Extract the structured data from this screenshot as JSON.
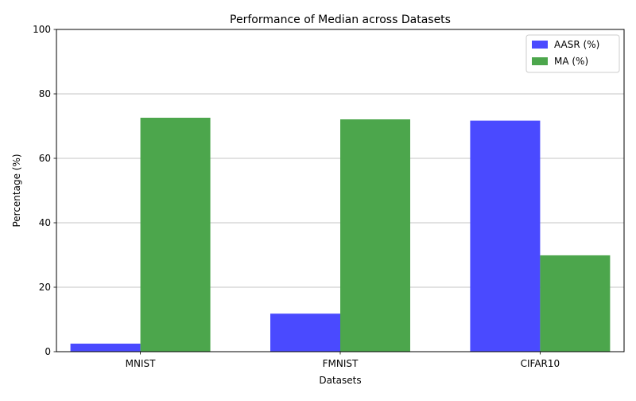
{
  "chart_data": {
    "type": "bar",
    "title": "Performance of Median across Datasets",
    "xlabel": "Datasets",
    "ylabel": "Percentage (%)",
    "categories": [
      "MNIST",
      "FMNIST",
      "CIFAR10"
    ],
    "series": [
      {
        "name": "AASR (%)",
        "values": [
          2.5,
          11.8,
          71.7
        ],
        "color": "#4a4aff"
      },
      {
        "name": "MA (%)",
        "values": [
          72.6,
          72.1,
          29.9
        ],
        "color": "#4ca64c"
      }
    ],
    "ylim": [
      0,
      100
    ],
    "yticks": [
      "0",
      "20",
      "40",
      "60",
      "80",
      "100"
    ],
    "grid": "y-major",
    "legend": "top-right"
  }
}
